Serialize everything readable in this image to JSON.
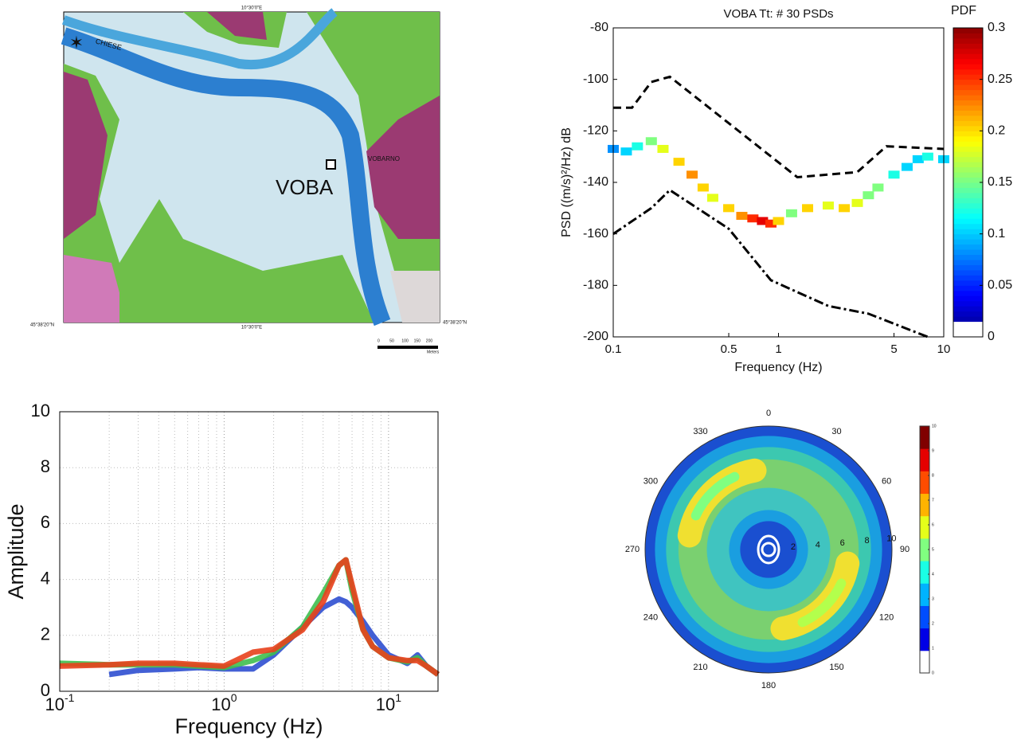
{
  "map": {
    "station": "VOBA",
    "river": "CHIESE",
    "town": "VOBARNO",
    "lon": "10°30'0\"E",
    "lat": "45°38'20\"N",
    "scale": {
      "ticks": [
        "0",
        "50",
        "100",
        "150",
        "200"
      ],
      "unit": "Meters"
    }
  },
  "chart_data": [
    {
      "type": "heatmap",
      "title": "VOBA Tt: # 30 PSDs",
      "xlabel": "Frequency (Hz)",
      "ylabel": "PSD ((m/s)²/Hz)  dB",
      "xlog": true,
      "xlim": [
        0.1,
        10
      ],
      "xticks": [
        0.1,
        0.5,
        1,
        5,
        10
      ],
      "ylim": [
        -200,
        -80
      ],
      "yticks": [
        -200,
        -180,
        -160,
        -140,
        -120,
        -100,
        -80
      ],
      "series": [
        {
          "style": "dashed",
          "color": "#000000",
          "x": [
            0.1,
            0.13,
            0.17,
            0.22,
            1.3,
            3,
            4.5,
            10
          ],
          "values": [
            -111,
            -111,
            -101,
            -99,
            -138,
            -136,
            -126,
            -127
          ]
        },
        {
          "style": "dashdot",
          "color": "#000000",
          "x": [
            0.1,
            0.17,
            0.22,
            0.5,
            0.9,
            2,
            3.5,
            8
          ],
          "values": [
            -160,
            -150,
            -143,
            -158,
            -178,
            -188,
            -191,
            -200
          ]
        }
      ],
      "cells": {
        "x": [
          0.1,
          0.12,
          0.14,
          0.17,
          0.2,
          0.25,
          0.3,
          0.35,
          0.4,
          0.5,
          0.6,
          0.7,
          0.8,
          0.9,
          1,
          1.2,
          1.5,
          2,
          2.5,
          3,
          3.5,
          4,
          5,
          6,
          7,
          8,
          10
        ],
        "y": [
          -127,
          -128,
          -126,
          -124,
          -127,
          -132,
          -137,
          -142,
          -146,
          -150,
          -153,
          -154,
          -155,
          -156,
          -155,
          -152,
          -150,
          -149,
          -150,
          -148,
          -145,
          -142,
          -137,
          -134,
          -131,
          -130,
          -131
        ],
        "values": [
          0.08,
          0.1,
          0.12,
          0.15,
          0.18,
          0.2,
          0.22,
          0.2,
          0.18,
          0.2,
          0.22,
          0.25,
          0.27,
          0.25,
          0.2,
          0.15,
          0.2,
          0.18,
          0.2,
          0.18,
          0.15,
          0.15,
          0.12,
          0.1,
          0.1,
          0.12,
          0.1
        ]
      },
      "colorbar": {
        "label": "PDF",
        "clim": [
          0,
          0.3
        ],
        "ticks": [
          0,
          0.05,
          0.1,
          0.15,
          0.2,
          0.25,
          0.3
        ]
      }
    },
    {
      "type": "line",
      "xlabel": "Frequency (Hz)",
      "ylabel": "Amplitude",
      "xlog": true,
      "grid": true,
      "xlim": [
        0.1,
        20
      ],
      "xticks": [
        {
          "value": 0.1,
          "label": "10",
          "exponent": "-1"
        },
        {
          "value": 1,
          "label": "10",
          "exponent": "0"
        },
        {
          "value": 10,
          "label": "10",
          "exponent": "1"
        }
      ],
      "xminor": [
        0.2,
        0.3,
        0.4,
        0.5,
        0.6,
        0.7,
        0.8,
        0.9,
        2,
        3,
        4,
        5,
        6,
        7,
        8,
        9,
        20
      ],
      "ylim": [
        0,
        10
      ],
      "yticks": [
        0,
        2,
        4,
        6,
        8,
        10
      ],
      "x": [
        0.1,
        0.2,
        0.3,
        0.5,
        0.7,
        1,
        1.5,
        2,
        3,
        4,
        5,
        5.5,
        6,
        7,
        8,
        10,
        13,
        15,
        17,
        20
      ],
      "series": [
        {
          "color": "#2f4fd0",
          "values": [
            null,
            0.6,
            0.75,
            0.8,
            0.85,
            0.8,
            0.8,
            1.3,
            2.3,
            3.0,
            3.3,
            3.2,
            3.0,
            2.5,
            2.0,
            1.3,
            1.0,
            1.3,
            0.9,
            0.6
          ]
        },
        {
          "color": "#3fbf4f",
          "values": [
            1.0,
            0.95,
            0.95,
            0.95,
            0.9,
            0.85,
            1.1,
            1.4,
            2.3,
            3.5,
            4.5,
            4.7,
            3.6,
            2.2,
            1.6,
            1.2,
            1.05,
            1.2,
            0.9,
            0.6
          ]
        },
        {
          "color": "#e8401c",
          "values": [
            0.9,
            0.95,
            1.0,
            1.0,
            0.95,
            0.9,
            1.4,
            1.5,
            2.2,
            3.2,
            4.5,
            4.7,
            3.8,
            2.2,
            1.6,
            1.2,
            1.1,
            1.1,
            0.9,
            0.6
          ]
        }
      ]
    },
    {
      "type": "polar",
      "thetaticks": [
        0,
        30,
        60,
        90,
        120,
        150,
        180,
        210,
        240,
        270,
        300,
        330
      ],
      "rlim": [
        0,
        10
      ],
      "rticks": [
        2,
        4,
        6,
        8,
        10
      ],
      "peaks": {
        "azimuth": [
          315,
          135
        ],
        "radius": [
          6.5,
          6.5
        ],
        "values": [
          5,
          5.5
        ]
      },
      "colorbar": {
        "clim": [
          0,
          10
        ],
        "ticks": [
          0,
          1,
          2,
          3,
          4,
          5,
          6,
          7,
          8,
          9,
          10
        ]
      }
    }
  ]
}
